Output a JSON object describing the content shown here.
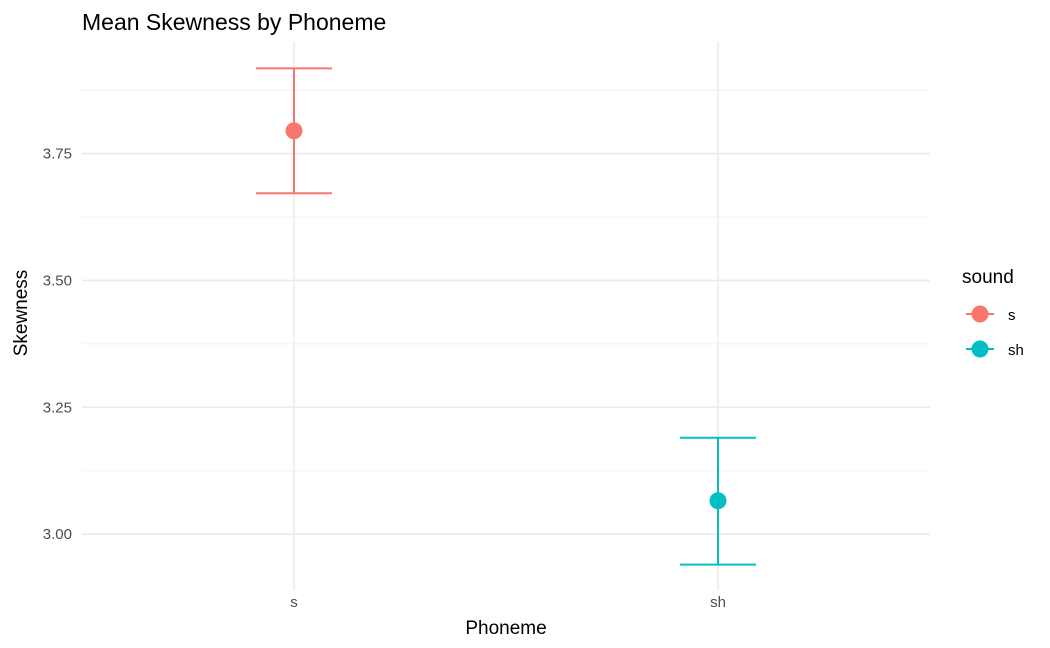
{
  "chart_data": {
    "type": "scatter",
    "title": "Mean Skewness by Phoneme",
    "xlabel": "Phoneme",
    "ylabel": "Skewness",
    "categories": [
      "s",
      "sh"
    ],
    "series": [
      {
        "name": "s",
        "category": "s",
        "mean": 3.795,
        "lower": 3.672,
        "upper": 3.918,
        "color": "#F8766D"
      },
      {
        "name": "sh",
        "category": "sh",
        "mean": 3.066,
        "lower": 2.94,
        "upper": 3.19,
        "color": "#00BFC4"
      }
    ],
    "ylim": [
      2.89,
      3.97
    ],
    "y_ticks": [
      3.0,
      3.25,
      3.5,
      3.75
    ],
    "y_tick_labels": [
      "3.00",
      "3.25",
      "3.50",
      "3.75"
    ],
    "grid": true,
    "legend": {
      "title": "sound",
      "position": "right",
      "items": [
        "s",
        "sh"
      ]
    }
  }
}
